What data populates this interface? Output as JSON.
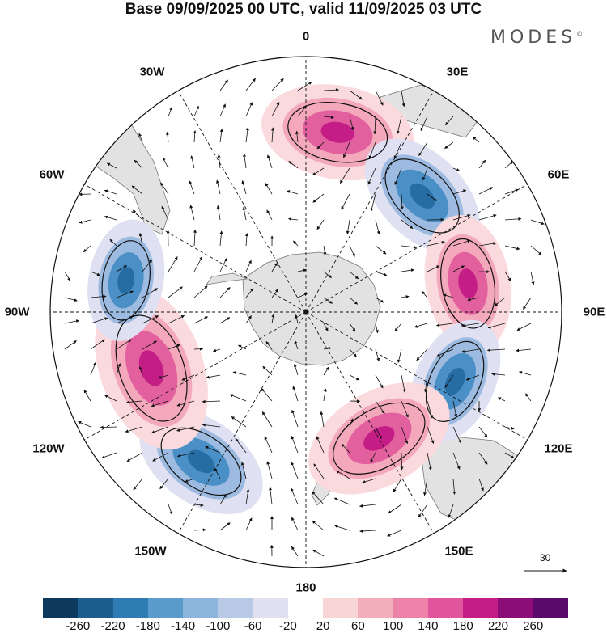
{
  "title": "Base 09/09/2025 00 UTC, valid 11/09/2025 03 UTC",
  "brand": "MODES",
  "brand_mark": "©",
  "longitude_labels": {
    "lon_0": "0",
    "lon_30e": "30E",
    "lon_60e": "60E",
    "lon_90e": "90E",
    "lon_120e": "120E",
    "lon_150e": "150E",
    "lon_180": "180",
    "lon_150w": "150W",
    "lon_120w": "120W",
    "lon_90w": "90W",
    "lon_60w": "60W",
    "lon_30w": "30W"
  },
  "vector_scale": "30",
  "colorbar": {
    "ticks": [
      "-260",
      "-220",
      "-180",
      "-140",
      "-100",
      "-60",
      "-20",
      "20",
      "60",
      "100",
      "140",
      "180",
      "220",
      "260"
    ],
    "colors": [
      "#0d3a5c",
      "#1c5f8f",
      "#2f7cb4",
      "#5a9bcb",
      "#8cb5dd",
      "#b8c9e6",
      "#dfe1f1",
      "#ffffff",
      "#f8d6d6",
      "#f3aebc",
      "#ee83aa",
      "#e0559b",
      "#c41e86",
      "#8c0d78",
      "#5a0a6b"
    ]
  },
  "map_colors": {
    "land": "#e2e2e2",
    "coast": "#777777",
    "grid": "#111111",
    "pos_weak": "#fadadd",
    "pos_mid": "#f3a9bb",
    "pos_strong": "#e3609e",
    "pos_core": "#c41e86",
    "neg_weak": "#dfe0f1",
    "neg_mid": "#9dbbe0",
    "neg_strong": "#4a8fc6",
    "neg_core": "#256da3"
  },
  "anomaly_centers": [
    {
      "label": "high-0",
      "sign": "pos",
      "lon": 10,
      "lat": -40,
      "strength": 200
    },
    {
      "label": "low-40E",
      "sign": "neg",
      "lon": 45,
      "lat": -45,
      "strength": 180
    },
    {
      "label": "high-80E",
      "sign": "pos",
      "lon": 80,
      "lat": -45,
      "strength": 180
    },
    {
      "label": "low-115E",
      "sign": "neg",
      "lon": 115,
      "lat": -45,
      "strength": 170
    },
    {
      "label": "high-150E",
      "sign": "pos",
      "lon": 150,
      "lat": -50,
      "strength": 200
    },
    {
      "label": "low-150W",
      "sign": "neg",
      "lon": -145,
      "lat": -40,
      "strength": 180
    },
    {
      "label": "high-110W",
      "sign": "pos",
      "lon": -110,
      "lat": -45,
      "strength": 220
    },
    {
      "label": "low-80W",
      "sign": "neg",
      "lon": -80,
      "lat": -40,
      "strength": 160
    }
  ]
}
